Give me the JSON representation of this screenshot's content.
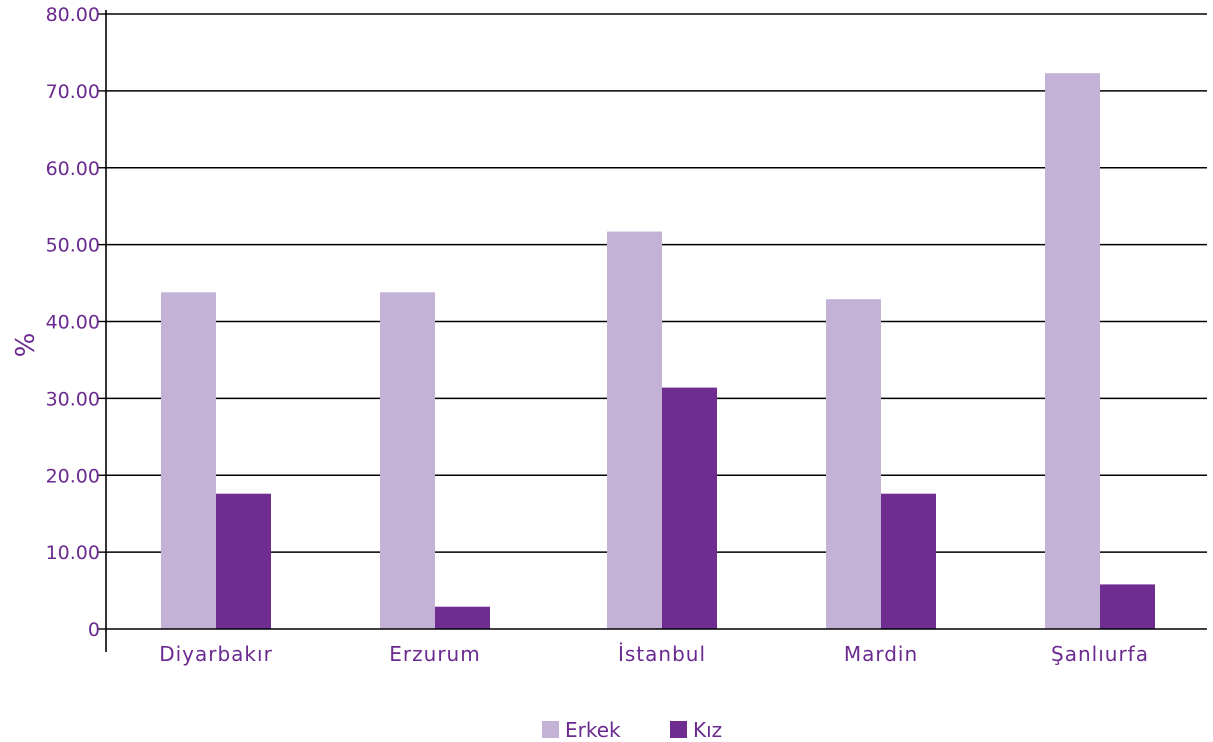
{
  "colors": {
    "text": "#6b2a8f",
    "erkek": "#c4b1d6",
    "kiz": "#6f2c91",
    "axis": "#000000",
    "grid": "#000000"
  },
  "chart_data": {
    "type": "bar",
    "ylabel": "%",
    "xlabel": "",
    "ylim": [
      0,
      80
    ],
    "yticks": [
      "0",
      "10.00",
      "20.00",
      "30.00",
      "40.00",
      "50.00",
      "60.00",
      "70.00",
      "80.00"
    ],
    "grid": true,
    "legend_position": "bottom",
    "categories": [
      "Diyarbakır",
      "Erzurum",
      "İstanbul",
      "Mardin",
      "Şanlıurfa"
    ],
    "series": [
      {
        "name": "Erkek",
        "values": [
          43.8,
          43.8,
          51.7,
          42.9,
          72.3
        ]
      },
      {
        "name": "Kız",
        "values": [
          17.6,
          2.9,
          31.4,
          17.6,
          5.8
        ]
      }
    ]
  }
}
